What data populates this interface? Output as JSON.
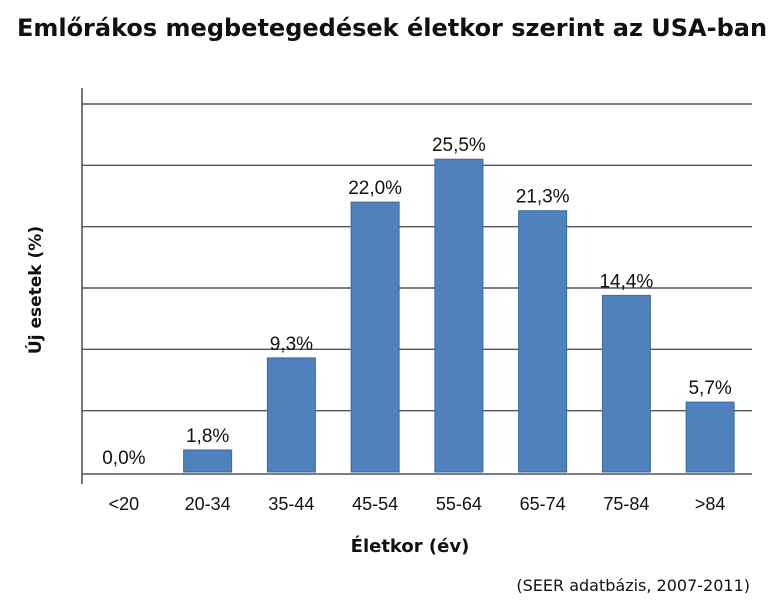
{
  "chart_data": {
    "type": "bar",
    "title": "Emlőrákos megbetegedések életkor szerint az USA-ban",
    "xlabel": "Életkor (év)",
    "ylabel": "Új esetek (%)",
    "source": "(SEER adatbázis, 2007-2011)",
    "categories": [
      "<20",
      "20-34",
      "35-44",
      "45-54",
      "55-64",
      "65-74",
      "75-84",
      ">84"
    ],
    "values": [
      0.0,
      1.8,
      9.3,
      22.0,
      25.5,
      21.3,
      14.4,
      5.7
    ],
    "value_labels": [
      "0,0%",
      "1,8%",
      "9,3%",
      "22,0%",
      "25,5%",
      "21,3%",
      "14,4%",
      "5,7%"
    ],
    "ylim": [
      0,
      30
    ],
    "grid": true,
    "bar_color": "#4f81bd"
  }
}
